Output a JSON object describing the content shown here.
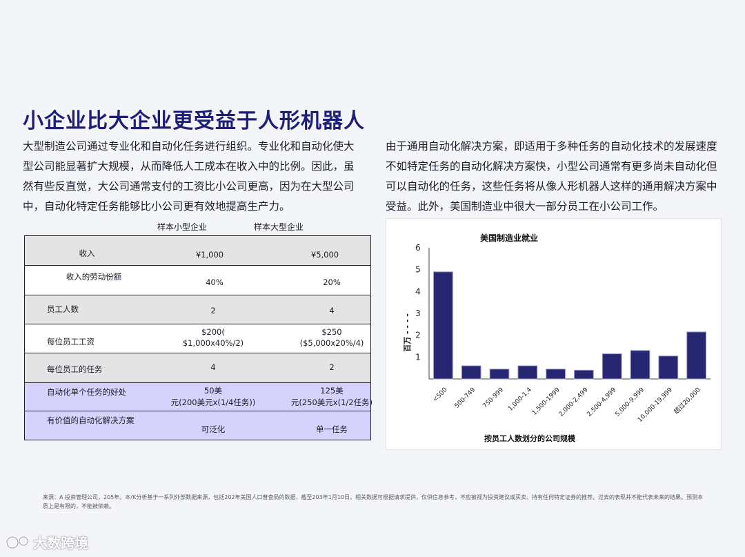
{
  "page": {
    "title": "小企业比大企业更受益于人形机器人",
    "paragraph_left": "大型制造公司通过专业化和自动化任务进行组织。专业化和自动化使大型公司能显著扩大规模，从而降低人工成本在收入中的比例。因此，虽然有些反直觉，大公司通常支付的工资比小公司更高，因为在大型公司中，自动化特定任务能够比小公司更有效地提高生产力。",
    "paragraph_right": "由于通用自动化解决方案，即适用于多种任务的自动化技术的发展速度不如特定任务的自动化解决方案快，小型公司通常有更多尚未自动化但可以自动化的任务，这些任务将从像人形机器人这样的通用解决方案中受益。此外，美国制造业中很大一部分员工在小公司工作。"
  },
  "table": {
    "col_small": "样本小型企业",
    "col_large": "样本大型企业",
    "rows": [
      {
        "label": "收入",
        "small": "¥1,000",
        "large": "¥5,000"
      },
      {
        "label": "收入的劳动份额",
        "small": "40%",
        "large": "20%"
      },
      {
        "label": "员工人数",
        "small": "2",
        "large": "4"
      },
      {
        "label": "每位员工工资",
        "small_1": "$200(",
        "small_2": "$1,000x40%/2)",
        "large_1": "$250",
        "large_2": "($5,000x20%/4)"
      },
      {
        "label": "每位员工的任务",
        "small": "4",
        "large": "2"
      },
      {
        "label": "自动化单个任务的好处",
        "small_1": "50美",
        "small_2": "元(200美元x(1/4任务))",
        "large_1": "125美",
        "large_2": "元(250美元x(1/2任务)"
      },
      {
        "label": "有价值的自动化解决方案",
        "small": "可泛化",
        "large": "单一任务"
      }
    ]
  },
  "chart_data": {
    "type": "bar",
    "title": "美国制造业就业",
    "xlabel": "按员工人数划分的公司规模",
    "ylabel": "百万 - - - -",
    "ylim": [
      0,
      6
    ],
    "yticks": [
      1,
      2,
      3,
      4,
      5,
      6
    ],
    "categories": [
      "<500",
      "500-749",
      "750-999",
      "1,000-1,4",
      "1,500-1999",
      "2,000-2,499",
      "2,500-4,999",
      "5,000-9,999",
      "10,000-19,999",
      "超过20,000"
    ],
    "values": [
      4.9,
      0.6,
      0.45,
      0.6,
      0.45,
      0.4,
      1.15,
      1.3,
      1.05,
      2.15
    ],
    "bar_color": "#262671",
    "grid": false
  },
  "footer": {
    "source": "来源：A  投资管理公司，205年。本/K分析基于一系列外部数据来源，包括202年美国人口普查局的数据，截至203年1月10日。相关数据可根据请求提供，仅供信息参考，不应被视为投资建议或买卖、持有任何特定证券的推荐。过去的表现并不能代表未来的结果。预测本质上是有限的，不能被依赖。",
    "watermark": "大数跨境"
  }
}
